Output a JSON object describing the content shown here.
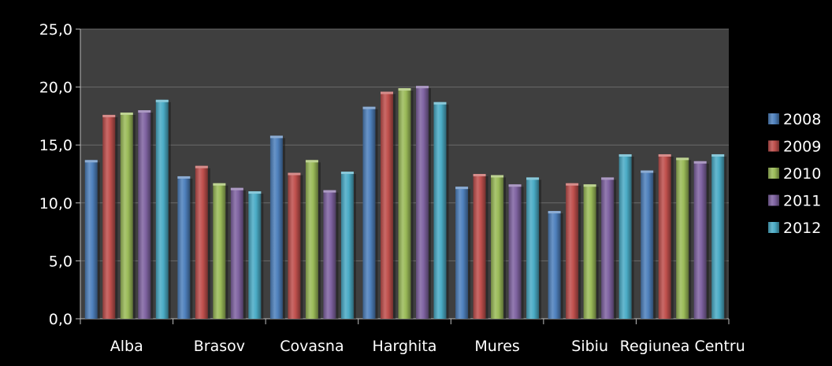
{
  "chart_data": {
    "type": "bar",
    "title": "",
    "xlabel": "",
    "ylabel": "",
    "ylim": [
      0,
      25
    ],
    "yticks": [
      "0,0",
      "5,0",
      "10,0",
      "15,0",
      "20,0",
      "25,0"
    ],
    "grid": true,
    "legend_position": "right",
    "categories": [
      "Alba",
      "Brasov",
      "Covasna",
      "Harghita",
      "Mures",
      "Sibiu",
      "Regiunea Centru"
    ],
    "series": [
      {
        "name": "2008",
        "color": "#4f81bd",
        "values": [
          13.7,
          12.3,
          15.8,
          18.3,
          11.4,
          9.3,
          12.8
        ]
      },
      {
        "name": "2009",
        "color": "#c0504d",
        "values": [
          17.6,
          13.2,
          12.6,
          19.6,
          12.5,
          11.7,
          14.2
        ]
      },
      {
        "name": "2010",
        "color": "#9bbb59",
        "values": [
          17.8,
          11.7,
          13.7,
          19.9,
          12.4,
          11.6,
          13.9
        ]
      },
      {
        "name": "2011",
        "color": "#8064a2",
        "values": [
          18.0,
          11.3,
          11.1,
          20.1,
          11.6,
          12.2,
          13.6
        ]
      },
      {
        "name": "2012",
        "color": "#4bacc6",
        "values": [
          18.9,
          11.0,
          12.7,
          18.7,
          12.2,
          14.2,
          14.2
        ]
      }
    ]
  }
}
